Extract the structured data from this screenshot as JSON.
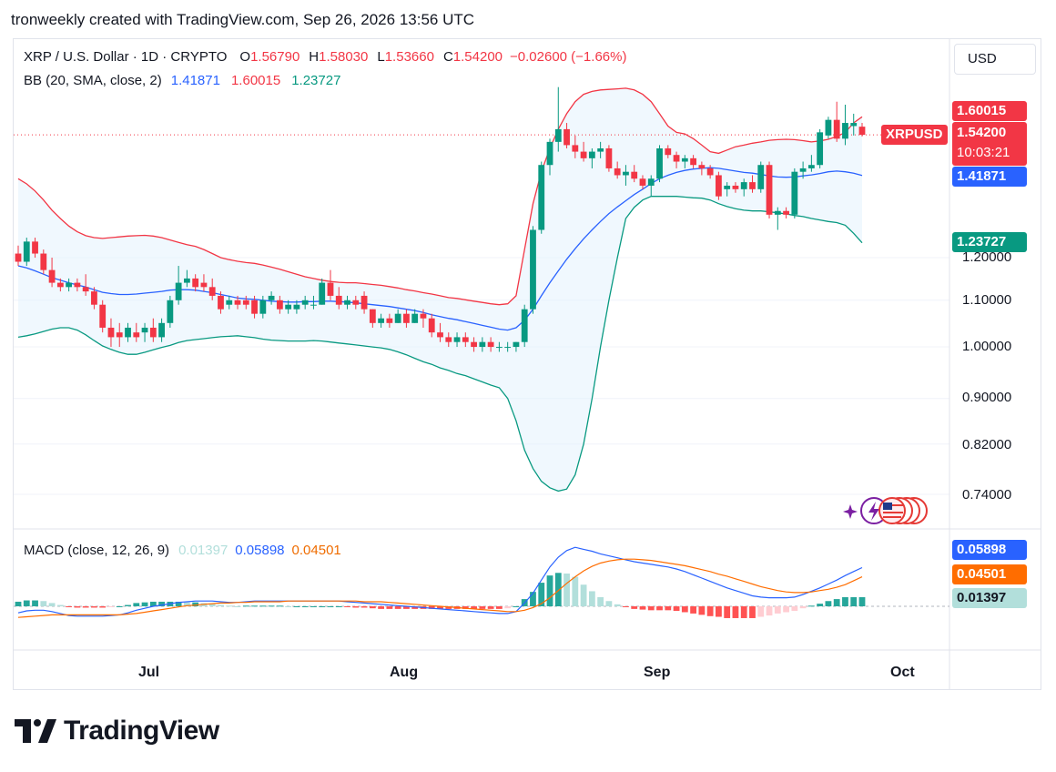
{
  "header": {
    "created_by": "tronweekly created with TradingView.com, Sep 26, 2026 13:56 UTC"
  },
  "legend": {
    "symbol": "XRP / U.S. Dollar · 1D · CRYPTO",
    "o_label": "O",
    "o": "1.56790",
    "h_label": "H",
    "h": "1.58030",
    "l_label": "L",
    "l": "1.53660",
    "c_label": "C",
    "c": "1.54200",
    "change": "−0.02600 (−1.66%)",
    "bb_name": "BB (20, SMA, close, 2)",
    "bb_basis": "1.41871",
    "bb_upper": "1.60015",
    "bb_lower": "1.23727",
    "macd_name": "MACD (close, 12, 26, 9)",
    "macd_hist": "0.01397",
    "macd_line": "0.05898",
    "macd_signal": "0.04501"
  },
  "currency_button": "USD",
  "price_axis": {
    "ticks": [
      "1.20000",
      "1.10000",
      "1.00000",
      "0.90000",
      "0.82000",
      "0.74000"
    ],
    "tags": {
      "upper": "1.60015",
      "symbol": "XRPUSD",
      "last": "1.54200",
      "countdown": "10:03:21",
      "basis": "1.41871",
      "lower": "1.23727"
    }
  },
  "macd_axis": {
    "macd": "0.05898",
    "signal": "0.04501",
    "hist": "0.01397"
  },
  "time_axis": [
    "Jul",
    "Aug",
    "Sep",
    "Oct"
  ],
  "brand": "TradingView",
  "colors": {
    "up": "#089981",
    "down": "#f23645",
    "bb_basis": "#2962ff",
    "bb_upper": "#f23645",
    "bb_lower": "#089981",
    "bb_fill": "#e3f2fd",
    "macd": "#2962ff",
    "signal": "#ff6d00",
    "hist_up_strong": "#26a69a",
    "hist_up_weak": "#b2dfdb",
    "hist_dn_strong": "#ff5252",
    "hist_dn_weak": "#ffcdd2"
  },
  "chart_data": {
    "type": "candlestick",
    "symbol": "XRPUSD",
    "interval": "1D",
    "x_labels": [
      "Jul",
      "Aug",
      "Sep",
      "Oct"
    ],
    "price_range": [
      0.72,
      1.72
    ],
    "price_scale": "log",
    "ohlc": [
      [
        1.21,
        1.23,
        1.18,
        1.19
      ],
      [
        1.19,
        1.25,
        1.18,
        1.24
      ],
      [
        1.24,
        1.25,
        1.2,
        1.21
      ],
      [
        1.21,
        1.22,
        1.16,
        1.17
      ],
      [
        1.17,
        1.2,
        1.13,
        1.14
      ],
      [
        1.14,
        1.15,
        1.12,
        1.13
      ],
      [
        1.13,
        1.15,
        1.12,
        1.14
      ],
      [
        1.14,
        1.15,
        1.12,
        1.13
      ],
      [
        1.13,
        1.16,
        1.11,
        1.12
      ],
      [
        1.12,
        1.13,
        1.08,
        1.09
      ],
      [
        1.09,
        1.1,
        1.03,
        1.04
      ],
      [
        1.04,
        1.06,
        1.0,
        1.02
      ],
      [
        1.03,
        1.05,
        1.0,
        1.02
      ],
      [
        1.02,
        1.05,
        1.01,
        1.04
      ],
      [
        1.03,
        1.05,
        1.01,
        1.02
      ],
      [
        1.03,
        1.05,
        1.01,
        1.04
      ],
      [
        1.04,
        1.06,
        1.01,
        1.02
      ],
      [
        1.02,
        1.06,
        1.01,
        1.05
      ],
      [
        1.05,
        1.11,
        1.04,
        1.1
      ],
      [
        1.1,
        1.18,
        1.09,
        1.14
      ],
      [
        1.14,
        1.17,
        1.13,
        1.15
      ],
      [
        1.15,
        1.16,
        1.12,
        1.13
      ],
      [
        1.14,
        1.16,
        1.12,
        1.13
      ],
      [
        1.13,
        1.15,
        1.1,
        1.11
      ],
      [
        1.11,
        1.12,
        1.07,
        1.08
      ],
      [
        1.09,
        1.11,
        1.08,
        1.1
      ],
      [
        1.1,
        1.11,
        1.08,
        1.09
      ],
      [
        1.1,
        1.11,
        1.08,
        1.09
      ],
      [
        1.1,
        1.11,
        1.06,
        1.07
      ],
      [
        1.07,
        1.11,
        1.06,
        1.1
      ],
      [
        1.1,
        1.12,
        1.09,
        1.11
      ],
      [
        1.1,
        1.11,
        1.07,
        1.08
      ],
      [
        1.08,
        1.1,
        1.07,
        1.09
      ],
      [
        1.08,
        1.1,
        1.07,
        1.09
      ],
      [
        1.09,
        1.11,
        1.08,
        1.1
      ],
      [
        1.09,
        1.11,
        1.08,
        1.09
      ],
      [
        1.09,
        1.15,
        1.09,
        1.14
      ],
      [
        1.14,
        1.17,
        1.1,
        1.11
      ],
      [
        1.11,
        1.13,
        1.08,
        1.09
      ],
      [
        1.09,
        1.11,
        1.08,
        1.1
      ],
      [
        1.1,
        1.11,
        1.08,
        1.09
      ],
      [
        1.11,
        1.12,
        1.07,
        1.08
      ],
      [
        1.08,
        1.08,
        1.04,
        1.05
      ],
      [
        1.05,
        1.07,
        1.04,
        1.06
      ],
      [
        1.06,
        1.07,
        1.04,
        1.05
      ],
      [
        1.05,
        1.08,
        1.05,
        1.07
      ],
      [
        1.07,
        1.08,
        1.04,
        1.05
      ],
      [
        1.05,
        1.08,
        1.05,
        1.07
      ],
      [
        1.07,
        1.08,
        1.04,
        1.06
      ],
      [
        1.06,
        1.07,
        1.02,
        1.03
      ],
      [
        1.03,
        1.05,
        1.01,
        1.02
      ],
      [
        1.02,
        1.03,
        1.0,
        1.01
      ],
      [
        1.01,
        1.03,
        1.0,
        1.02
      ],
      [
        1.02,
        1.03,
        1.0,
        1.01
      ],
      [
        1.01,
        1.02,
        0.99,
        1.0
      ],
      [
        1.0,
        1.02,
        0.99,
        1.01
      ],
      [
        1.01,
        1.02,
        0.99,
        1.0
      ],
      [
        1.0,
        1.01,
        0.99,
        1.0
      ],
      [
        1.0,
        1.01,
        0.99,
        1.0
      ],
      [
        1.0,
        1.01,
        0.99,
        1.01
      ],
      [
        1.01,
        1.09,
        1.0,
        1.08
      ],
      [
        1.08,
        1.28,
        1.07,
        1.27
      ],
      [
        1.27,
        1.46,
        1.26,
        1.45
      ],
      [
        1.45,
        1.53,
        1.42,
        1.52
      ],
      [
        1.52,
        1.7,
        1.49,
        1.56
      ],
      [
        1.56,
        1.58,
        1.5,
        1.51
      ],
      [
        1.51,
        1.54,
        1.47,
        1.49
      ],
      [
        1.49,
        1.52,
        1.46,
        1.47
      ],
      [
        1.47,
        1.5,
        1.44,
        1.49
      ],
      [
        1.49,
        1.52,
        1.47,
        1.5
      ],
      [
        1.5,
        1.51,
        1.43,
        1.44
      ],
      [
        1.44,
        1.46,
        1.41,
        1.42
      ],
      [
        1.42,
        1.45,
        1.39,
        1.43
      ],
      [
        1.43,
        1.45,
        1.4,
        1.41
      ],
      [
        1.41,
        1.42,
        1.38,
        1.39
      ],
      [
        1.39,
        1.42,
        1.36,
        1.41
      ],
      [
        1.41,
        1.51,
        1.4,
        1.5
      ],
      [
        1.5,
        1.51,
        1.47,
        1.48
      ],
      [
        1.48,
        1.49,
        1.44,
        1.46
      ],
      [
        1.46,
        1.48,
        1.44,
        1.47
      ],
      [
        1.47,
        1.48,
        1.44,
        1.45
      ],
      [
        1.45,
        1.46,
        1.42,
        1.44
      ],
      [
        1.44,
        1.45,
        1.41,
        1.42
      ],
      [
        1.42,
        1.43,
        1.35,
        1.36
      ],
      [
        1.38,
        1.4,
        1.36,
        1.39
      ],
      [
        1.39,
        1.4,
        1.37,
        1.38
      ],
      [
        1.38,
        1.41,
        1.36,
        1.4
      ],
      [
        1.4,
        1.42,
        1.37,
        1.38
      ],
      [
        1.38,
        1.46,
        1.37,
        1.45
      ],
      [
        1.45,
        1.46,
        1.3,
        1.31
      ],
      [
        1.31,
        1.33,
        1.27,
        1.32
      ],
      [
        1.32,
        1.33,
        1.3,
        1.31
      ],
      [
        1.31,
        1.44,
        1.3,
        1.43
      ],
      [
        1.43,
        1.46,
        1.41,
        1.44
      ],
      [
        1.44,
        1.48,
        1.43,
        1.45
      ],
      [
        1.45,
        1.56,
        1.44,
        1.55
      ],
      [
        1.54,
        1.6,
        1.53,
        1.59
      ],
      [
        1.59,
        1.65,
        1.52,
        1.53
      ],
      [
        1.53,
        1.64,
        1.51,
        1.58
      ],
      [
        1.57,
        1.61,
        1.54,
        1.58
      ],
      [
        1.568,
        1.58,
        1.537,
        1.542
      ]
    ],
    "bollinger": {
      "period": 20,
      "std": 2,
      "basis": [
        1.18,
        1.175,
        1.168,
        1.16,
        1.152,
        1.146,
        1.14,
        1.135,
        1.13,
        1.124,
        1.118,
        1.115,
        1.113,
        1.113,
        1.114,
        1.116,
        1.118,
        1.12,
        1.123,
        1.124,
        1.124,
        1.123,
        1.12,
        1.117,
        1.113,
        1.109,
        1.105,
        1.103,
        1.102,
        1.1,
        1.098,
        1.097,
        1.096,
        1.096,
        1.097,
        1.097,
        1.098,
        1.098,
        1.097,
        1.096,
        1.094,
        1.092,
        1.09,
        1.088,
        1.086,
        1.083,
        1.08,
        1.077,
        1.073,
        1.068,
        1.064,
        1.06,
        1.057,
        1.053,
        1.049,
        1.045,
        1.041,
        1.037,
        1.035,
        1.04,
        1.056,
        1.08,
        1.11,
        1.14,
        1.168,
        1.196,
        1.222,
        1.247,
        1.27,
        1.292,
        1.313,
        1.331,
        1.348,
        1.365,
        1.38,
        1.396,
        1.41,
        1.42,
        1.428,
        1.434,
        1.438,
        1.44,
        1.442,
        1.44,
        1.436,
        1.432,
        1.428,
        1.426,
        1.422,
        1.418,
        1.415,
        1.414,
        1.415,
        1.418,
        1.421,
        1.425,
        1.43,
        1.432,
        1.43,
        1.426,
        1.419
      ],
      "upper": [
        1.41,
        1.395,
        1.375,
        1.35,
        1.322,
        1.3,
        1.28,
        1.265,
        1.255,
        1.25,
        1.248,
        1.25,
        1.252,
        1.254,
        1.255,
        1.256,
        1.254,
        1.25,
        1.244,
        1.238,
        1.232,
        1.228,
        1.22,
        1.21,
        1.2,
        1.195,
        1.191,
        1.188,
        1.186,
        1.182,
        1.177,
        1.172,
        1.166,
        1.16,
        1.154,
        1.15,
        1.146,
        1.143,
        1.141,
        1.14,
        1.14,
        1.138,
        1.136,
        1.134,
        1.131,
        1.128,
        1.124,
        1.121,
        1.117,
        1.114,
        1.11,
        1.106,
        1.104,
        1.101,
        1.098,
        1.095,
        1.092,
        1.09,
        1.092,
        1.11,
        1.22,
        1.34,
        1.43,
        1.5,
        1.56,
        1.61,
        1.65,
        1.675,
        1.685,
        1.69,
        1.692,
        1.694,
        1.696,
        1.69,
        1.675,
        1.65,
        1.61,
        1.57,
        1.55,
        1.545,
        1.53,
        1.51,
        1.49,
        1.485,
        1.495,
        1.505,
        1.51,
        1.516,
        1.52,
        1.525,
        1.527,
        1.528,
        1.527,
        1.524,
        1.52,
        1.523,
        1.528,
        1.537,
        1.55,
        1.58,
        1.6
      ],
      "lower": [
        1.02,
        1.023,
        1.027,
        1.032,
        1.037,
        1.04,
        1.04,
        1.035,
        1.025,
        1.013,
        1.002,
        0.995,
        0.989,
        0.985,
        0.985,
        0.989,
        0.994,
        0.999,
        1.003,
        1.009,
        1.013,
        1.015,
        1.017,
        1.019,
        1.021,
        1.022,
        1.023,
        1.021,
        1.019,
        1.016,
        1.014,
        1.013,
        1.012,
        1.012,
        1.012,
        1.013,
        1.012,
        1.01,
        1.008,
        1.006,
        1.004,
        1.002,
        1.0,
        0.998,
        0.995,
        0.99,
        0.984,
        0.977,
        0.97,
        0.965,
        0.958,
        0.953,
        0.947,
        0.943,
        0.937,
        0.931,
        0.925,
        0.92,
        0.9,
        0.86,
        0.81,
        0.78,
        0.76,
        0.75,
        0.745,
        0.748,
        0.77,
        0.82,
        0.9,
        1.0,
        1.1,
        1.2,
        1.3,
        1.33,
        1.35,
        1.36,
        1.36,
        1.36,
        1.36,
        1.358,
        1.356,
        1.355,
        1.35,
        1.34,
        1.332,
        1.326,
        1.322,
        1.32,
        1.32,
        1.318,
        1.315,
        1.312,
        1.308,
        1.305,
        1.3,
        1.296,
        1.292,
        1.289,
        1.282,
        1.261,
        1.237
      ]
    },
    "macd": {
      "params": [
        12,
        26,
        9
      ],
      "macd": [
        -0.01,
        -0.007,
        -0.006,
        -0.006,
        -0.008,
        -0.011,
        -0.014,
        -0.015,
        -0.015,
        -0.015,
        -0.015,
        -0.014,
        -0.013,
        -0.01,
        -0.006,
        -0.003,
        0.0,
        0.002,
        0.004,
        0.006,
        0.007,
        0.008,
        0.008,
        0.008,
        0.007,
        0.006,
        0.006,
        0.007,
        0.008,
        0.008,
        0.008,
        0.008,
        0.008,
        0.008,
        0.008,
        0.008,
        0.008,
        0.008,
        0.008,
        0.007,
        0.006,
        0.005,
        0.004,
        0.003,
        0.002,
        0.001,
        0.0,
        -0.001,
        -0.002,
        -0.003,
        -0.004,
        -0.005,
        -0.006,
        -0.007,
        -0.008,
        -0.009,
        -0.01,
        -0.011,
        -0.011,
        -0.008,
        0.005,
        0.02,
        0.04,
        0.06,
        0.075,
        0.085,
        0.09,
        0.087,
        0.084,
        0.08,
        0.077,
        0.074,
        0.071,
        0.068,
        0.066,
        0.064,
        0.062,
        0.06,
        0.057,
        0.053,
        0.048,
        0.043,
        0.038,
        0.033,
        0.028,
        0.024,
        0.02,
        0.016,
        0.014,
        0.013,
        0.013,
        0.013,
        0.014,
        0.018,
        0.023,
        0.028,
        0.034,
        0.04,
        0.047,
        0.053,
        0.059
      ],
      "signal": [
        -0.017,
        -0.016,
        -0.015,
        -0.014,
        -0.013,
        -0.013,
        -0.013,
        -0.013,
        -0.013,
        -0.013,
        -0.013,
        -0.013,
        -0.013,
        -0.012,
        -0.011,
        -0.009,
        -0.007,
        -0.005,
        -0.003,
        -0.001,
        0.001,
        0.002,
        0.003,
        0.004,
        0.005,
        0.005,
        0.006,
        0.006,
        0.007,
        0.007,
        0.007,
        0.007,
        0.008,
        0.008,
        0.008,
        0.008,
        0.008,
        0.008,
        0.008,
        0.008,
        0.008,
        0.007,
        0.007,
        0.007,
        0.006,
        0.005,
        0.004,
        0.003,
        0.002,
        0.001,
        0.0,
        -0.001,
        -0.002,
        -0.003,
        -0.004,
        -0.005,
        -0.006,
        -0.007,
        -0.008,
        -0.008,
        -0.006,
        -0.002,
        0.004,
        0.013,
        0.024,
        0.035,
        0.045,
        0.054,
        0.061,
        0.066,
        0.069,
        0.071,
        0.072,
        0.072,
        0.071,
        0.07,
        0.068,
        0.066,
        0.064,
        0.062,
        0.059,
        0.056,
        0.053,
        0.049,
        0.046,
        0.042,
        0.038,
        0.034,
        0.03,
        0.027,
        0.024,
        0.022,
        0.021,
        0.021,
        0.022,
        0.024,
        0.026,
        0.029,
        0.033,
        0.039,
        0.045
      ],
      "histogram": [
        0.007,
        0.009,
        0.009,
        0.008,
        0.005,
        0.002,
        -0.001,
        -0.002,
        -0.002,
        -0.002,
        -0.002,
        -0.001,
        0.0,
        0.002,
        0.005,
        0.006,
        0.007,
        0.007,
        0.007,
        0.007,
        0.006,
        0.006,
        0.005,
        0.004,
        0.002,
        0.001,
        0.0,
        0.001,
        0.001,
        0.001,
        0.001,
        0.001,
        0.0,
        0.0,
        0.0,
        0.0,
        0.0,
        0.0,
        0.0,
        -0.001,
        -0.002,
        -0.002,
        -0.003,
        -0.004,
        -0.004,
        -0.004,
        -0.004,
        -0.004,
        -0.004,
        -0.004,
        -0.004,
        -0.004,
        -0.004,
        -0.004,
        -0.004,
        -0.004,
        -0.004,
        -0.004,
        -0.003,
        0.0,
        0.011,
        0.022,
        0.036,
        0.047,
        0.051,
        0.05,
        0.045,
        0.033,
        0.023,
        0.014,
        0.008,
        0.003,
        -0.001,
        -0.004,
        -0.005,
        -0.006,
        -0.006,
        -0.006,
        -0.007,
        -0.009,
        -0.011,
        -0.013,
        -0.015,
        -0.016,
        -0.018,
        -0.018,
        -0.018,
        -0.018,
        -0.016,
        -0.014,
        -0.011,
        -0.009,
        -0.007,
        -0.003,
        0.001,
        0.004,
        0.008,
        0.011,
        0.014,
        0.014,
        0.014
      ]
    }
  }
}
